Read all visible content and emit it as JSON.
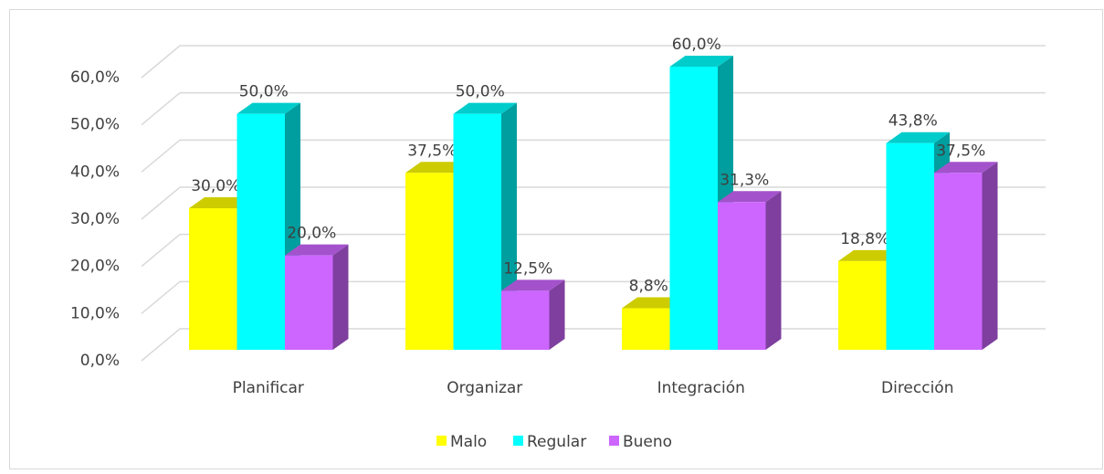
{
  "chart_data": {
    "type": "bar3d",
    "categories": [
      "Planificar",
      "Organizar",
      "Integración",
      "Dirección"
    ],
    "series": [
      {
        "name": "Malo",
        "color": "#ffff00",
        "values": [
          30.0,
          37.5,
          8.8,
          18.8
        ],
        "value_labels": [
          "30,0%",
          "37,5%",
          "8,8%",
          "18,8%"
        ]
      },
      {
        "name": "Regular",
        "color": "#00ffff",
        "values": [
          50.0,
          50.0,
          60.0,
          43.8
        ],
        "value_labels": [
          "50,0%",
          "50,0%",
          "60,0%",
          "43,8%"
        ]
      },
      {
        "name": "Bueno",
        "color": "#cc66ff",
        "values": [
          20.0,
          12.5,
          31.3,
          37.5
        ],
        "value_labels": [
          "20,0%",
          "12,5%",
          "31,3%",
          "37,5%"
        ]
      }
    ],
    "ylim": [
      0,
      60
    ],
    "yticks": [
      {
        "value": 0,
        "label": "0,0%"
      },
      {
        "value": 10,
        "label": "10,0%"
      },
      {
        "value": 20,
        "label": "20,0%"
      },
      {
        "value": 30,
        "label": "30,0%"
      },
      {
        "value": 40,
        "label": "40,0%"
      },
      {
        "value": 50,
        "label": "50,0%"
      },
      {
        "value": 60,
        "label": "60,0%"
      }
    ],
    "grid": true,
    "legend": "bottom"
  }
}
